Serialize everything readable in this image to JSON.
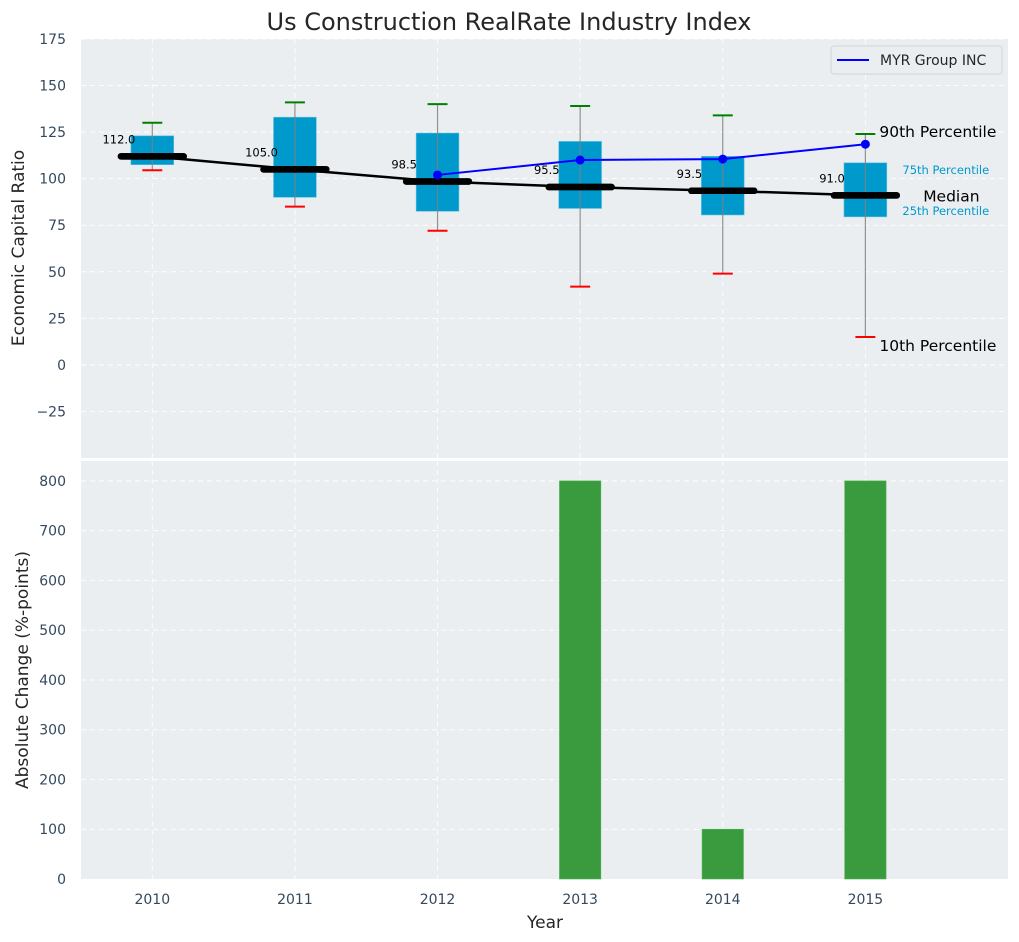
{
  "chart_data": [
    {
      "type": "box",
      "panel": "top",
      "title": "Us Construction RealRate Industry Index",
      "xlabel": "",
      "ylabel": "Economic Capital Ratio",
      "xlim": [
        2009.5,
        2016
      ],
      "ylim": [
        -50,
        175
      ],
      "yticks": [
        -25,
        0,
        25,
        50,
        75,
        100,
        125,
        150,
        175
      ],
      "ytick_labels": [
        "−25",
        "0",
        "25",
        "50",
        "75",
        "100",
        "125",
        "150",
        "175"
      ],
      "grid": true,
      "categories": [
        2010,
        2011,
        2012,
        2013,
        2014,
        2015
      ],
      "boxes": [
        {
          "year": 2010,
          "p10": 104.5,
          "p25": 107.5,
          "median": 112.0,
          "p75": 123.0,
          "p90": 130.0,
          "label": "112.0"
        },
        {
          "year": 2011,
          "p10": 85.0,
          "p25": 90.0,
          "median": 105.0,
          "p75": 133.0,
          "p90": 141.0,
          "label": "105.0"
        },
        {
          "year": 2012,
          "p10": 72.0,
          "p25": 82.5,
          "median": 98.5,
          "p75": 124.5,
          "p90": 140.0,
          "label": "98.5"
        },
        {
          "year": 2013,
          "p10": 42.0,
          "p25": 84.0,
          "median": 95.5,
          "p75": 120.0,
          "p90": 139.0,
          "label": "95.5"
        },
        {
          "year": 2014,
          "p10": 49.0,
          "p25": 80.5,
          "median": 93.5,
          "p75": 112.0,
          "p90": 134.0,
          "label": "93.5"
        },
        {
          "year": 2015,
          "p10": 15.0,
          "p25": 79.5,
          "median": 91.0,
          "p75": 108.5,
          "p90": 124.0,
          "label": "91.0"
        }
      ],
      "series": [
        {
          "name": "MYR Group INC",
          "x": [
            2012,
            2013,
            2014,
            2015
          ],
          "values": [
            102.0,
            110.0,
            110.5,
            118.5
          ],
          "color": "#0000ff"
        }
      ],
      "legend": {
        "placement": "top-right",
        "entries": [
          "MYR Group INC"
        ]
      },
      "annotations": {
        "p90": "90th Percentile",
        "p75": "75th Percentile",
        "median": "Median",
        "p25": "25th Percentile",
        "p10": "10th Percentile"
      },
      "colors": {
        "box": "#0099cc",
        "median": "#000000",
        "p90_cap": "#008000",
        "p10_cap": "#ff0000",
        "whisker": "#808080",
        "background": "#eaeef0"
      }
    },
    {
      "type": "bar",
      "panel": "bottom",
      "xlabel": "Year",
      "ylabel": "Absolute Change (%-points)",
      "categories": [
        2010,
        2011,
        2012,
        2013,
        2014,
        2015
      ],
      "values": [
        0,
        0,
        0,
        800,
        100,
        800
      ],
      "xlim": [
        2009.5,
        2016
      ],
      "ylim": [
        0,
        840
      ],
      "yticks": [
        0,
        100,
        200,
        300,
        400,
        500,
        600,
        700,
        800
      ],
      "xtick_labels": [
        "2010",
        "2011",
        "2012",
        "2013",
        "2014",
        "2015"
      ],
      "grid": true,
      "colors": {
        "bar": "#3a9b3e",
        "background": "#eaeef0"
      }
    }
  ]
}
